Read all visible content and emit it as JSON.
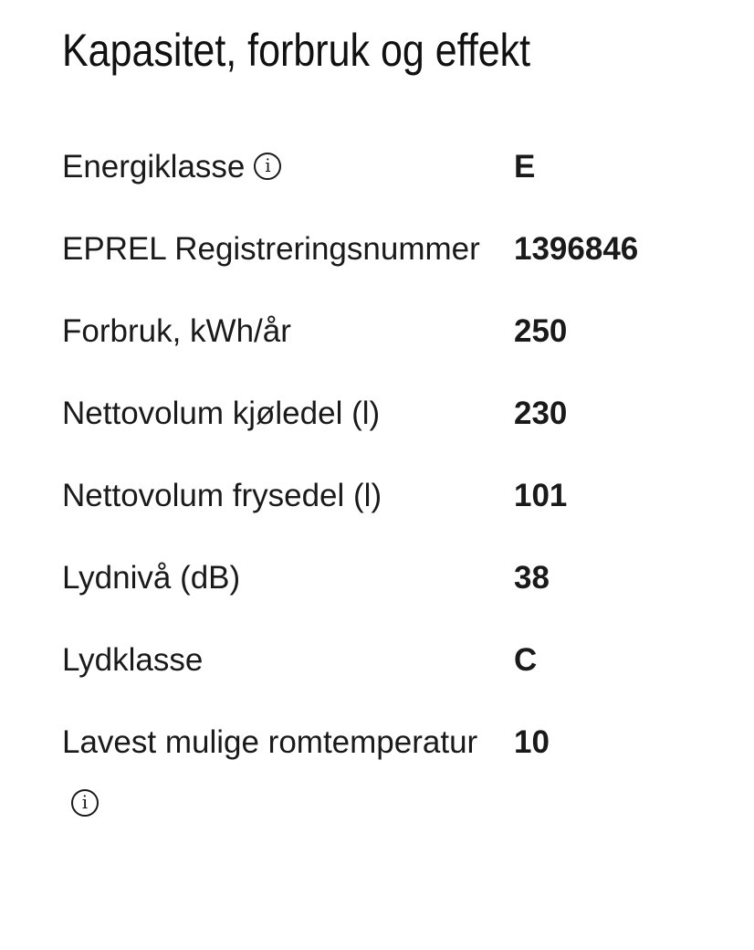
{
  "title": "Kapasitet, forbruk og effekt",
  "rows": [
    {
      "label": "Energiklasse",
      "value": "E",
      "info_icon": true
    },
    {
      "label": "EPREL Registreringsnummer",
      "value": "1396846"
    },
    {
      "label": "Forbruk, kWh/år",
      "value": "250"
    },
    {
      "label": "Nettovolum kjøledel (l)",
      "value": "230"
    },
    {
      "label": "Nettovolum frysedel (l)",
      "value": "101"
    },
    {
      "label": "Lydnivå (dB)",
      "value": "38"
    },
    {
      "label": "Lydklasse",
      "value": "C"
    },
    {
      "label": "Lavest mulige romtem­peratur",
      "value": "10",
      "info_icon": true
    }
  ],
  "icons": {
    "info": "info-circle-icon"
  }
}
